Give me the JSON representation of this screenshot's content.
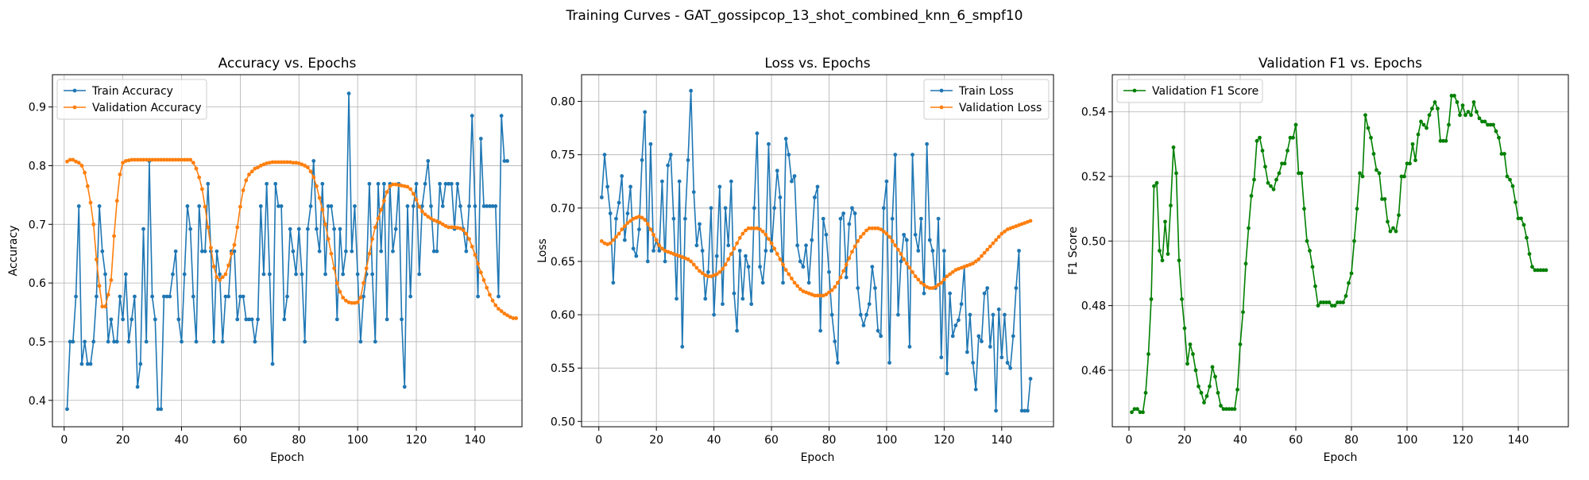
{
  "figure": {
    "title": "Training Curves - GAT_gossipcop_13_shot_combined_knn_6_smpf10"
  },
  "colors": {
    "train": "#1f77b4",
    "validation": "#ff7f0e",
    "f1": "#008000",
    "grid": "#b0b0b0"
  },
  "chart_data": [
    {
      "type": "line",
      "title": "Accuracy vs. Epochs",
      "xlabel": "Epoch",
      "ylabel": "Accuracy",
      "xlim": [
        -4,
        156
      ],
      "ylim": [
        0.355,
        0.955
      ],
      "xticks": [
        0,
        20,
        40,
        60,
        80,
        100,
        120,
        140
      ],
      "yticks": [
        0.4,
        0.5,
        0.6,
        0.7,
        0.8,
        0.9
      ],
      "grid": true,
      "legend_position": "top-left",
      "series": [
        {
          "name": "Train Accuracy",
          "color": "#1f77b4",
          "values": [
            0.385,
            0.5,
            0.5,
            0.577,
            0.731,
            0.462,
            0.5,
            0.462,
            0.462,
            0.5,
            0.577,
            0.731,
            0.654,
            0.615,
            0.5,
            0.538,
            0.5,
            0.5,
            0.577,
            0.538,
            0.615,
            0.5,
            0.538,
            0.577,
            0.423,
            0.462,
            0.692,
            0.5,
            0.808,
            0.577,
            0.538,
            0.385,
            0.385,
            0.577,
            0.577,
            0.577,
            0.615,
            0.654,
            0.538,
            0.5,
            0.615,
            0.731,
            0.692,
            0.577,
            0.5,
            0.731,
            0.654,
            0.654,
            0.769,
            0.654,
            0.5,
            0.654,
            0.615,
            0.5,
            0.577,
            0.577,
            0.654,
            0.654,
            0.538,
            0.577,
            0.577,
            0.538,
            0.538,
            0.538,
            0.5,
            0.538,
            0.731,
            0.615,
            0.769,
            0.615,
            0.462,
            0.769,
            0.731,
            0.731,
            0.538,
            0.577,
            0.692,
            0.654,
            0.615,
            0.692,
            0.615,
            0.5,
            0.692,
            0.731,
            0.808,
            0.692,
            0.654,
            0.769,
            0.615,
            0.731,
            0.731,
            0.692,
            0.538,
            0.692,
            0.615,
            0.654,
            0.923,
            0.654,
            0.731,
            0.615,
            0.5,
            0.577,
            0.615,
            0.769,
            0.615,
            0.5,
            0.769,
            0.654,
            0.769,
            0.538,
            0.769,
            0.654,
            0.692,
            0.769,
            0.538,
            0.423,
            0.731,
            0.577,
            0.731,
            0.769,
            0.615,
            0.731,
            0.769,
            0.808,
            0.731,
            0.654,
            0.654,
            0.769,
            0.731,
            0.769,
            0.769,
            0.769,
            0.692,
            0.769,
            0.731,
            0.692,
            0.654,
            0.731,
            0.885,
            0.731,
            0.577,
            0.846,
            0.731,
            0.731,
            0.731,
            0.731,
            0.731,
            0.577,
            0.885,
            0.808,
            0.808
          ]
        },
        {
          "name": "Validation Accuracy",
          "color": "#ff7f0e",
          "values": [
            0.807,
            0.81,
            0.81,
            0.807,
            0.805,
            0.8,
            0.788,
            0.765,
            0.737,
            0.7,
            0.64,
            0.595,
            0.56,
            0.56,
            0.58,
            0.605,
            0.68,
            0.74,
            0.785,
            0.805,
            0.808,
            0.809,
            0.81,
            0.81,
            0.81,
            0.81,
            0.81,
            0.81,
            0.81,
            0.81,
            0.81,
            0.81,
            0.81,
            0.81,
            0.81,
            0.81,
            0.81,
            0.81,
            0.81,
            0.81,
            0.81,
            0.81,
            0.81,
            0.805,
            0.795,
            0.78,
            0.76,
            0.73,
            0.695,
            0.66,
            0.628,
            0.61,
            0.605,
            0.61,
            0.615,
            0.63,
            0.65,
            0.665,
            0.695,
            0.73,
            0.758,
            0.775,
            0.785,
            0.79,
            0.795,
            0.797,
            0.8,
            0.802,
            0.804,
            0.805,
            0.806,
            0.806,
            0.806,
            0.806,
            0.806,
            0.806,
            0.806,
            0.805,
            0.805,
            0.804,
            0.802,
            0.8,
            0.797,
            0.79,
            0.78,
            0.765,
            0.745,
            0.725,
            0.7,
            0.675,
            0.65,
            0.625,
            0.6,
            0.585,
            0.575,
            0.57,
            0.567,
            0.566,
            0.566,
            0.567,
            0.575,
            0.6,
            0.625,
            0.65,
            0.675,
            0.695,
            0.71,
            0.725,
            0.74,
            0.755,
            0.765,
            0.768,
            0.768,
            0.767,
            0.766,
            0.765,
            0.764,
            0.76,
            0.752,
            0.742,
            0.73,
            0.722,
            0.717,
            0.713,
            0.71,
            0.707,
            0.705,
            0.703,
            0.7,
            0.697,
            0.695,
            0.695,
            0.695,
            0.694,
            0.693,
            0.69,
            0.684,
            0.675,
            0.662,
            0.648,
            0.633,
            0.618,
            0.605,
            0.592,
            0.58,
            0.57,
            0.562,
            0.556,
            0.552,
            0.548,
            0.545,
            0.542,
            0.54,
            0.54
          ]
        }
      ]
    },
    {
      "type": "line",
      "title": "Loss vs. Epochs",
      "xlabel": "Epoch",
      "ylabel": "Loss",
      "xlim": [
        -6,
        158
      ],
      "ylim": [
        0.495,
        0.825
      ],
      "xticks": [
        0,
        20,
        40,
        60,
        80,
        100,
        120,
        140
      ],
      "yticks": [
        0.5,
        0.55,
        0.6,
        0.65,
        0.7,
        0.75,
        0.8
      ],
      "ytick_labels": [
        "0.50",
        "0.55",
        "0.60",
        "0.65",
        "0.70",
        "0.75",
        "0.80"
      ],
      "grid": true,
      "legend_position": "top-right",
      "series": [
        {
          "name": "Train Loss",
          "color": "#1f77b4",
          "values": [
            0.71,
            0.75,
            0.72,
            0.695,
            0.63,
            0.69,
            0.705,
            0.73,
            0.67,
            0.695,
            0.72,
            0.662,
            0.655,
            0.68,
            0.745,
            0.79,
            0.65,
            0.76,
            0.66,
            0.67,
            0.66,
            0.725,
            0.65,
            0.74,
            0.75,
            0.69,
            0.615,
            0.725,
            0.57,
            0.69,
            0.745,
            0.81,
            0.715,
            0.665,
            0.685,
            0.66,
            0.615,
            0.64,
            0.7,
            0.6,
            0.655,
            0.72,
            0.61,
            0.7,
            0.665,
            0.725,
            0.62,
            0.585,
            0.66,
            0.615,
            0.655,
            0.645,
            0.61,
            0.7,
            0.77,
            0.645,
            0.63,
            0.66,
            0.76,
            0.66,
            0.7,
            0.735,
            0.71,
            0.63,
            0.765,
            0.75,
            0.725,
            0.73,
            0.665,
            0.65,
            0.645,
            0.665,
            0.63,
            0.67,
            0.71,
            0.72,
            0.585,
            0.69,
            0.675,
            0.64,
            0.6,
            0.575,
            0.555,
            0.69,
            0.695,
            0.635,
            0.685,
            0.7,
            0.695,
            0.625,
            0.6,
            0.59,
            0.6,
            0.61,
            0.645,
            0.625,
            0.585,
            0.58,
            0.7,
            0.725,
            0.555,
            0.69,
            0.75,
            0.6,
            0.65,
            0.675,
            0.67,
            0.57,
            0.75,
            0.675,
            0.66,
            0.69,
            0.62,
            0.76,
            0.67,
            0.66,
            0.625,
            0.69,
            0.56,
            0.66,
            0.545,
            0.62,
            0.58,
            0.59,
            0.595,
            0.61,
            0.645,
            0.565,
            0.6,
            0.555,
            0.53,
            0.58,
            0.575,
            0.62,
            0.625,
            0.57,
            0.6,
            0.51,
            0.605,
            0.56,
            0.6,
            0.555,
            0.55,
            0.58,
            0.625,
            0.66,
            0.51,
            0.51,
            0.51,
            0.54
          ]
        },
        {
          "name": "Validation Loss",
          "color": "#ff7f0e",
          "values": [
            0.669,
            0.667,
            0.666,
            0.667,
            0.67,
            0.673,
            0.676,
            0.68,
            0.683,
            0.686,
            0.688,
            0.69,
            0.691,
            0.692,
            0.691,
            0.689,
            0.685,
            0.68,
            0.675,
            0.67,
            0.665,
            0.662,
            0.66,
            0.659,
            0.658,
            0.657,
            0.656,
            0.655,
            0.654,
            0.653,
            0.652,
            0.65,
            0.647,
            0.644,
            0.641,
            0.639,
            0.637,
            0.636,
            0.636,
            0.637,
            0.638,
            0.64,
            0.643,
            0.647,
            0.652,
            0.657,
            0.662,
            0.667,
            0.672,
            0.676,
            0.679,
            0.681,
            0.681,
            0.681,
            0.681,
            0.68,
            0.678,
            0.675,
            0.671,
            0.667,
            0.662,
            0.657,
            0.652,
            0.647,
            0.642,
            0.638,
            0.634,
            0.63,
            0.627,
            0.624,
            0.622,
            0.621,
            0.62,
            0.619,
            0.618,
            0.618,
            0.618,
            0.618,
            0.619,
            0.621,
            0.623,
            0.626,
            0.63,
            0.635,
            0.641,
            0.647,
            0.653,
            0.659,
            0.664,
            0.669,
            0.673,
            0.676,
            0.679,
            0.681,
            0.681,
            0.681,
            0.681,
            0.68,
            0.678,
            0.676,
            0.673,
            0.669,
            0.665,
            0.661,
            0.657,
            0.652,
            0.648,
            0.644,
            0.64,
            0.636,
            0.633,
            0.63,
            0.628,
            0.626,
            0.625,
            0.625,
            0.626,
            0.628,
            0.63,
            0.633,
            0.636,
            0.638,
            0.64,
            0.642,
            0.643,
            0.644,
            0.645,
            0.646,
            0.647,
            0.648,
            0.65,
            0.652,
            0.655,
            0.658,
            0.661,
            0.664,
            0.667,
            0.67,
            0.673,
            0.676,
            0.678,
            0.68,
            0.681,
            0.682,
            0.683,
            0.684,
            0.685,
            0.686,
            0.687,
            0.688
          ]
        }
      ]
    },
    {
      "type": "line",
      "title": "Validation F1 vs. Epochs",
      "xlabel": "Epoch",
      "ylabel": "F1 Score",
      "xlim": [
        -6,
        158
      ],
      "ylim": [
        0.4425,
        0.5515
      ],
      "xticks": [
        0,
        20,
        40,
        60,
        80,
        100,
        120,
        140
      ],
      "yticks": [
        0.46,
        0.48,
        0.5,
        0.52,
        0.54
      ],
      "ytick_labels": [
        "0.46",
        "0.48",
        "0.50",
        "0.52",
        "0.54"
      ],
      "grid": true,
      "legend_position": "top-left",
      "series": [
        {
          "name": "Validation F1 Score",
          "color": "#008000",
          "values": [
            0.447,
            0.448,
            0.448,
            0.447,
            0.447,
            0.453,
            0.465,
            0.482,
            0.517,
            0.518,
            0.497,
            0.494,
            0.506,
            0.496,
            0.511,
            0.529,
            0.521,
            0.494,
            0.482,
            0.473,
            0.462,
            0.468,
            0.465,
            0.46,
            0.455,
            0.453,
            0.45,
            0.452,
            0.455,
            0.461,
            0.458,
            0.453,
            0.449,
            0.448,
            0.448,
            0.448,
            0.448,
            0.448,
            0.454,
            0.468,
            0.478,
            0.493,
            0.504,
            0.514,
            0.519,
            0.531,
            0.532,
            0.528,
            0.523,
            0.518,
            0.517,
            0.516,
            0.519,
            0.521,
            0.524,
            0.524,
            0.528,
            0.532,
            0.532,
            0.536,
            0.521,
            0.521,
            0.51,
            0.5,
            0.497,
            0.492,
            0.486,
            0.48,
            0.481,
            0.481,
            0.481,
            0.481,
            0.48,
            0.48,
            0.481,
            0.481,
            0.481,
            0.483,
            0.487,
            0.49,
            0.5,
            0.51,
            0.521,
            0.52,
            0.539,
            0.535,
            0.532,
            0.527,
            0.522,
            0.521,
            0.513,
            0.513,
            0.506,
            0.503,
            0.504,
            0.503,
            0.508,
            0.52,
            0.52,
            0.524,
            0.524,
            0.53,
            0.525,
            0.533,
            0.537,
            0.536,
            0.535,
            0.539,
            0.541,
            0.543,
            0.541,
            0.531,
            0.531,
            0.531,
            0.536,
            0.545,
            0.545,
            0.543,
            0.539,
            0.542,
            0.539,
            0.54,
            0.539,
            0.543,
            0.54,
            0.538,
            0.537,
            0.537,
            0.536,
            0.536,
            0.536,
            0.534,
            0.532,
            0.527,
            0.527,
            0.52,
            0.519,
            0.517,
            0.512,
            0.507,
            0.507,
            0.505,
            0.501,
            0.496,
            0.492,
            0.491,
            0.491,
            0.491,
            0.491,
            0.491
          ]
        }
      ]
    }
  ]
}
